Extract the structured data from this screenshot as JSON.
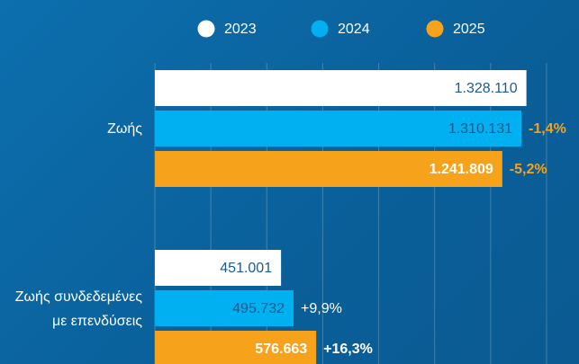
{
  "chart_data": {
    "type": "bar",
    "orientation": "horizontal",
    "categories": [
      "Ζωής",
      "Ζωής συνδεδεμένες με επενδύσεις"
    ],
    "series": [
      {
        "name": "2023",
        "color": "#ffffff",
        "values": [
          1328110,
          451001
        ],
        "value_labels": [
          "1.328.110",
          "451.001"
        ]
      },
      {
        "name": "2024",
        "color": "#00b0f0",
        "values": [
          1310131,
          495732
        ],
        "value_labels": [
          "1.310.131",
          "495.732"
        ],
        "change_labels": [
          "-1,4%",
          "+9,9%"
        ]
      },
      {
        "name": "2025",
        "color": "#f7a21b",
        "values": [
          1241809,
          576663
        ],
        "value_labels": [
          "1.241.809",
          "576.663"
        ],
        "change_labels": [
          "-5,2%",
          "+16,3%"
        ]
      }
    ],
    "xlim": [
      0,
      1500000
    ],
    "xticks": [
      0,
      200000,
      400000,
      600000,
      800000,
      1000000,
      1200000,
      1400000
    ],
    "grid": true,
    "legend": "top"
  }
}
